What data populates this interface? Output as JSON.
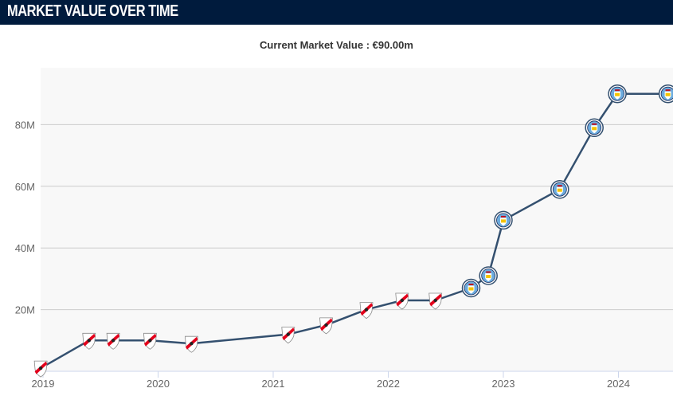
{
  "header": {
    "title": "MARKET VALUE OVER TIME"
  },
  "subtitle": "Current Market Value : €90.00m",
  "colors": {
    "header_bg": "#001b3d",
    "line": "#34506f",
    "plot_bg": "#f8f8f8",
    "grid": "#cccccc",
    "club_river": "#e3001b",
    "club_city": "#6cabdd"
  },
  "chart_data": {
    "type": "line",
    "title": "Current Market Value : €90.00m",
    "xlabel": "",
    "ylabel": "",
    "x_ticks": [
      "2019",
      "2020",
      "2021",
      "2022",
      "2023",
      "2024"
    ],
    "y_ticks": [
      "20M",
      "40M",
      "60M",
      "80M"
    ],
    "y_tick_values": [
      20,
      40,
      60,
      80
    ],
    "ylim": [
      0,
      100
    ],
    "xlim": [
      2018.98,
      2024.42
    ],
    "grid": true,
    "legend": "none",
    "series": [
      {
        "points": [
          {
            "x": 2018.98,
            "y": 1,
            "club": "River Plate",
            "icon": "river-plate-crest-icon"
          },
          {
            "x": 2019.4,
            "y": 10,
            "club": "River Plate",
            "icon": "river-plate-crest-icon"
          },
          {
            "x": 2019.61,
            "y": 10,
            "club": "River Plate",
            "icon": "river-plate-crest-icon"
          },
          {
            "x": 2019.93,
            "y": 10,
            "club": "River Plate",
            "icon": "river-plate-crest-icon"
          },
          {
            "x": 2020.29,
            "y": 9,
            "club": "River Plate",
            "icon": "river-plate-crest-icon"
          },
          {
            "x": 2021.13,
            "y": 12,
            "club": "River Plate",
            "icon": "river-plate-crest-icon"
          },
          {
            "x": 2021.46,
            "y": 15,
            "club": "River Plate",
            "icon": "river-plate-crest-icon"
          },
          {
            "x": 2021.81,
            "y": 20,
            "club": "River Plate",
            "icon": "river-plate-crest-icon"
          },
          {
            "x": 2022.12,
            "y": 23,
            "club": "River Plate",
            "icon": "river-plate-crest-icon"
          },
          {
            "x": 2022.41,
            "y": 23,
            "club": "River Plate",
            "icon": "river-plate-crest-icon"
          },
          {
            "x": 2022.72,
            "y": 27,
            "club": "Manchester City",
            "icon": "manchester-city-crest-icon"
          },
          {
            "x": 2022.87,
            "y": 31,
            "club": "Manchester City",
            "icon": "manchester-city-crest-icon"
          },
          {
            "x": 2023.0,
            "y": 49,
            "club": "Manchester City",
            "icon": "manchester-city-crest-icon"
          },
          {
            "x": 2023.49,
            "y": 59,
            "club": "Manchester City",
            "icon": "manchester-city-crest-icon"
          },
          {
            "x": 2023.79,
            "y": 79,
            "club": "Manchester City",
            "icon": "manchester-city-crest-icon"
          },
          {
            "x": 2023.99,
            "y": 90,
            "club": "Manchester City",
            "icon": "manchester-city-crest-icon"
          },
          {
            "x": 2024.43,
            "y": 90,
            "club": "Manchester City",
            "icon": "manchester-city-crest-icon"
          }
        ]
      }
    ]
  }
}
